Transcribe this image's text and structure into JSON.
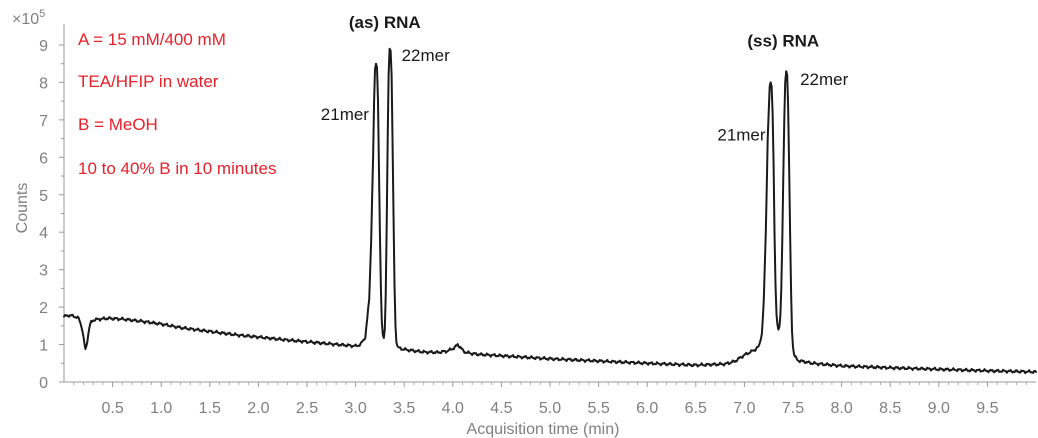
{
  "chart_data": {
    "type": "line",
    "xlabel": "Acquisition time (min)",
    "ylabel": "Counts",
    "y_multiplier": "×10",
    "y_exponent": "5",
    "xlim": [
      0,
      10
    ],
    "ylim": [
      0,
      9.4
    ],
    "x_ticks": [
      "0.5",
      "1.0",
      "1.5",
      "2.0",
      "2.5",
      "3.0",
      "3.5",
      "4.0",
      "4.5",
      "5.0",
      "5.5",
      "6.0",
      "6.5",
      "7.0",
      "7.5",
      "8.0",
      "8.5",
      "9.0",
      "9.5"
    ],
    "y_ticks": [
      "0",
      "1",
      "2",
      "3",
      "4",
      "5",
      "6",
      "7",
      "8",
      "9"
    ],
    "conditions": [
      "A = 15 mM/400 mM",
      "TEA/HFIP in water",
      "B = MeOH",
      "10 to 40% B in 10 minutes"
    ],
    "peak_groups": [
      {
        "label": "(as) RNA",
        "x": 3.3,
        "y": 9.4
      },
      {
        "label": "(ss) RNA",
        "x": 7.4,
        "y": 8.9
      }
    ],
    "peak_labels": [
      {
        "label": "21mer",
        "x": 3.22,
        "y": 8.55
      },
      {
        "label": "22mer",
        "x": 3.37,
        "y": 8.95
      },
      {
        "label": "21mer",
        "x": 7.3,
        "y": 8.0
      },
      {
        "label": "22mer",
        "x": 7.47,
        "y": 8.3
      }
    ],
    "series": [
      {
        "color": "#1a1a1a",
        "x": [
          0.0,
          0.05,
          0.1,
          0.15,
          0.18,
          0.2,
          0.22,
          0.24,
          0.26,
          0.28,
          0.3,
          0.33,
          0.37,
          0.45,
          0.6,
          0.8,
          1.0,
          1.2,
          1.5,
          1.8,
          2.0,
          2.3,
          2.6,
          2.9,
          3.0,
          3.05,
          3.1,
          3.14,
          3.16,
          3.18,
          3.19,
          3.2,
          3.21,
          3.22,
          3.23,
          3.24,
          3.25,
          3.26,
          3.27,
          3.28,
          3.29,
          3.3,
          3.31,
          3.32,
          3.33,
          3.34,
          3.35,
          3.36,
          3.37,
          3.38,
          3.39,
          3.4,
          3.41,
          3.42,
          3.43,
          3.45,
          3.48,
          3.55,
          3.7,
          3.85,
          3.95,
          4.02,
          4.05,
          4.08,
          4.11,
          4.15,
          4.25,
          4.5,
          5.0,
          5.5,
          6.0,
          6.5,
          6.8,
          6.9,
          7.0,
          7.1,
          7.15,
          7.18,
          7.2,
          7.22,
          7.24,
          7.26,
          7.27,
          7.28,
          7.29,
          7.3,
          7.31,
          7.32,
          7.33,
          7.34,
          7.35,
          7.36,
          7.37,
          7.38,
          7.39,
          7.4,
          7.41,
          7.42,
          7.43,
          7.44,
          7.45,
          7.46,
          7.47,
          7.48,
          7.49,
          7.5,
          7.51,
          7.52,
          7.53,
          7.54,
          7.56,
          7.6,
          7.7,
          8.0,
          8.5,
          9.0,
          9.5,
          10.0
        ],
        "y": [
          1.75,
          1.78,
          1.76,
          1.7,
          1.5,
          1.2,
          0.85,
          1.1,
          1.45,
          1.6,
          1.65,
          1.67,
          1.68,
          1.7,
          1.68,
          1.62,
          1.55,
          1.45,
          1.35,
          1.25,
          1.2,
          1.12,
          1.05,
          0.98,
          0.96,
          1.0,
          1.2,
          2.2,
          3.8,
          6.0,
          7.5,
          8.35,
          8.5,
          8.4,
          7.5,
          5.8,
          4.0,
          2.5,
          1.6,
          1.3,
          1.2,
          1.4,
          2.3,
          4.2,
          6.5,
          8.2,
          8.9,
          8.85,
          8.2,
          6.5,
          4.5,
          2.6,
          1.5,
          1.1,
          0.95,
          0.9,
          0.88,
          0.85,
          0.8,
          0.79,
          0.83,
          0.92,
          1.0,
          0.92,
          0.82,
          0.78,
          0.74,
          0.7,
          0.62,
          0.56,
          0.5,
          0.45,
          0.48,
          0.55,
          0.72,
          0.85,
          0.95,
          1.3,
          2.2,
          4.0,
          6.5,
          7.9,
          8.0,
          7.9,
          7.2,
          5.8,
          4.0,
          2.6,
          1.8,
          1.5,
          1.4,
          1.5,
          1.8,
          2.5,
          3.8,
          5.5,
          7.0,
          8.0,
          8.3,
          8.2,
          7.4,
          5.8,
          4.0,
          2.4,
          1.4,
          0.95,
          0.75,
          0.68,
          0.64,
          0.6,
          0.57,
          0.55,
          0.5,
          0.43,
          0.38,
          0.34,
          0.3,
          0.27
        ]
      }
    ]
  }
}
